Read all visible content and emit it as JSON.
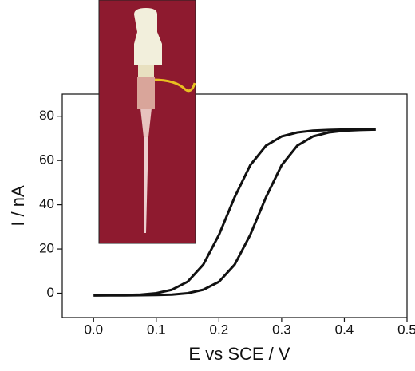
{
  "chart_data": {
    "type": "line",
    "xlabel": "E vs SCE / V",
    "ylabel": "I / nA",
    "x": [
      0,
      0.025,
      0.05,
      0.075,
      0.1,
      0.125,
      0.15,
      0.175,
      0.2,
      0.225,
      0.25,
      0.275,
      0.3,
      0.325,
      0.35,
      0.375,
      0.4,
      0.425,
      0.45
    ],
    "series": [
      {
        "color": "#111111",
        "values": [
          -1.0,
          -0.9,
          -0.8,
          -0.6,
          0.0,
          1.6,
          5.2,
          12.9,
          26.4,
          43.4,
          57.9,
          66.7,
          70.9,
          72.7,
          73.5,
          73.8,
          74,
          74,
          74
        ]
      },
      {
        "color": "#111111",
        "values": [
          -1.0,
          -1.0,
          -1.0,
          -0.9,
          -0.8,
          -0.6,
          0.0,
          1.6,
          5.2,
          12.9,
          26.4,
          43.4,
          57.9,
          66.7,
          70.9,
          72.7,
          73.5,
          73.8,
          74
        ]
      }
    ],
    "xlim": [
      -0.05,
      0.5
    ],
    "ylim": [
      -11,
      90
    ],
    "xticks": [
      {
        "value": 0,
        "label": "0.0"
      },
      0.1,
      0.2,
      0.3,
      0.4,
      0.5
    ],
    "yticks": [
      0,
      20,
      40,
      60,
      80
    ],
    "grid": false
  }
}
